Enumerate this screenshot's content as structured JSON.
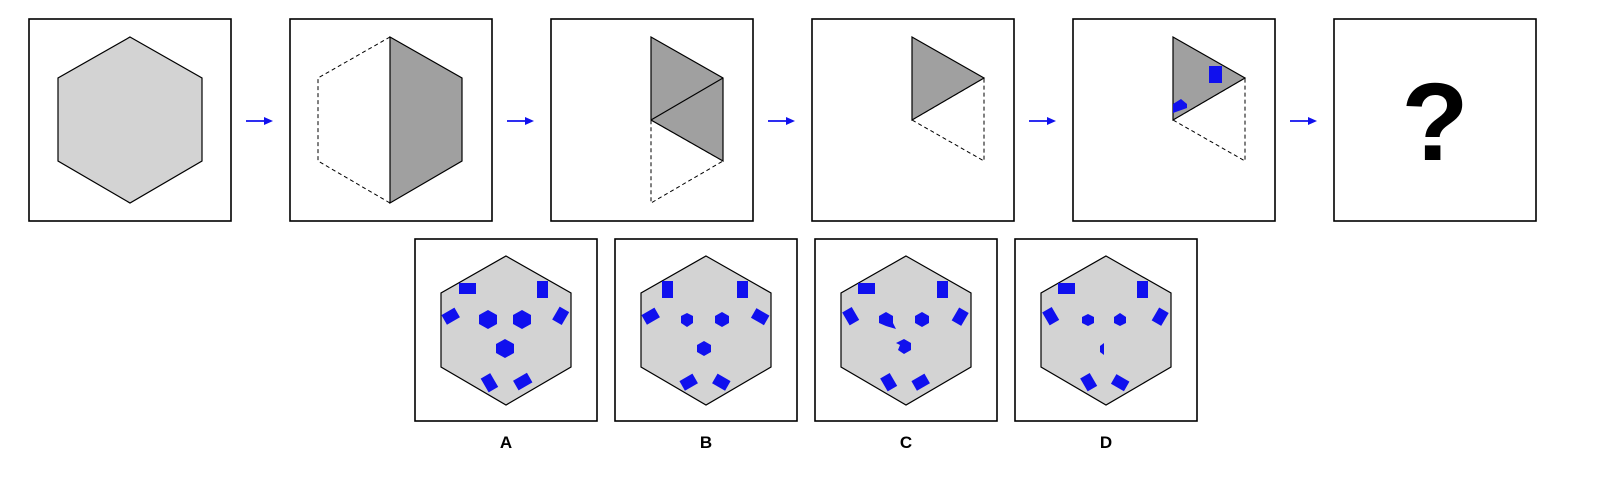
{
  "question_mark": "?",
  "options": [
    {
      "label": "A"
    },
    {
      "label": "B"
    },
    {
      "label": "C"
    },
    {
      "label": "D"
    }
  ],
  "colors": {
    "shape_fill": "#d3d3d3",
    "folded_fill": "#a0a0a0",
    "cut_fill": "#1010ee",
    "arrow": "#1010ee"
  }
}
